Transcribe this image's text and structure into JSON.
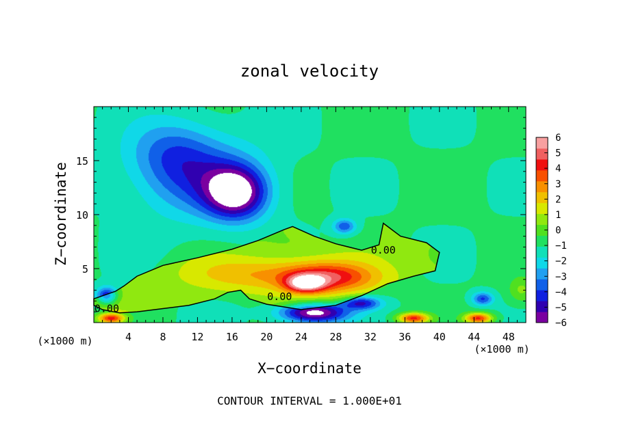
{
  "chart_data": {
    "type": "heatmap",
    "title": "zonal velocity",
    "xlabel": "X−coordinate",
    "ylabel": "Z−coordinate",
    "x_unit_left": "(×1000 m)",
    "x_unit_right": "(×1000 m)",
    "footer": "CONTOUR INTERVAL = 1.000E+01",
    "xlim": [
      0,
      50
    ],
    "ylim": [
      0,
      20
    ],
    "x_ticks": [
      4,
      8,
      12,
      16,
      20,
      24,
      28,
      32,
      36,
      40,
      44,
      48
    ],
    "x_tick_labels": [
      "4",
      "8",
      "12",
      "16",
      "20",
      "24",
      "28",
      "32",
      "36",
      "40",
      "44",
      "48"
    ],
    "y_ticks": [
      5,
      10,
      15
    ],
    "y_tick_labels": [
      "5",
      "10",
      "15"
    ],
    "colorbar": {
      "min": -6,
      "max": 6,
      "ticks": [
        6,
        5,
        4,
        3,
        2,
        1,
        0,
        -1,
        -2,
        -3,
        -4,
        -5,
        -6
      ],
      "tick_labels": [
        "6",
        "5",
        "4",
        "3",
        "2",
        "1",
        "0",
        "−1",
        "−2",
        "−3",
        "−4",
        "−5",
        "−6"
      ],
      "colors": [
        "#7a00a0",
        "#3000b0",
        "#1020e0",
        "#1060e8",
        "#20a0f0",
        "#10d8e8",
        "#10e0b8",
        "#20e060",
        "#50e020",
        "#90e810",
        "#d8e800",
        "#f0c000",
        "#f89000",
        "#f85000",
        "#f01010",
        "#f06060",
        "#f8a0a0"
      ]
    },
    "contour_labels": [
      {
        "text": "0.00",
        "x": 33.5,
        "y": 6.7
      },
      {
        "text": "0.00",
        "x": 21.5,
        "y": 2.4
      },
      {
        "text": "0.00",
        "x": 1.5,
        "y": 1.3
      }
    ],
    "zero_contour": [
      [
        0,
        2.2
      ],
      [
        2.5,
        2.9
      ],
      [
        3.5,
        3.4
      ],
      [
        5.0,
        4.3
      ],
      [
        8.0,
        5.3
      ],
      [
        12.0,
        6.0
      ],
      [
        16.0,
        6.8
      ],
      [
        19.0,
        7.6
      ],
      [
        22.0,
        8.6
      ],
      [
        23.0,
        8.9
      ],
      [
        25.5,
        8.0
      ],
      [
        28.0,
        7.3
      ],
      [
        31.0,
        6.7
      ],
      [
        33.0,
        7.2
      ],
      [
        33.5,
        9.2
      ],
      [
        35.5,
        8.0
      ],
      [
        38.5,
        7.4
      ],
      [
        40.0,
        6.5
      ],
      [
        39.5,
        4.8
      ],
      [
        37.0,
        4.3
      ],
      [
        34.0,
        3.6
      ],
      [
        31.0,
        2.5
      ],
      [
        28.0,
        1.6
      ],
      [
        24.0,
        1.2
      ],
      [
        20.0,
        1.7
      ],
      [
        18.0,
        2.2
      ],
      [
        17.0,
        3.0
      ],
      [
        15.5,
        2.8
      ],
      [
        14.0,
        2.2
      ],
      [
        11.0,
        1.6
      ],
      [
        8.0,
        1.3
      ],
      [
        5.0,
        1.0
      ],
      [
        3.0,
        0.9
      ],
      [
        1.0,
        1.2
      ],
      [
        0,
        1.6
      ]
    ],
    "features": [
      {
        "x": 16.5,
        "y": 12.0,
        "value": -5.2,
        "sx": 3.5,
        "sy": 2.4
      },
      {
        "x": 12.0,
        "y": 13.5,
        "value": -2.6,
        "sx": 7.0,
        "sy": 3.8
      },
      {
        "x": 9.0,
        "y": 16.0,
        "value": -1.6,
        "sx": 5.0,
        "sy": 3.0
      },
      {
        "x": 29.0,
        "y": 8.9,
        "value": -2.8,
        "sx": 1.3,
        "sy": 0.7
      },
      {
        "x": 27.0,
        "y": 4.2,
        "value": 4.0,
        "sx": 5.5,
        "sy": 1.4
      },
      {
        "x": 24.5,
        "y": 3.6,
        "value": 4.5,
        "sx": 2.2,
        "sy": 0.8
      },
      {
        "x": 18.0,
        "y": 4.5,
        "value": 1.6,
        "sx": 7.0,
        "sy": 1.5
      },
      {
        "x": 25.5,
        "y": 0.9,
        "value": -5.5,
        "sx": 3.8,
        "sy": 0.9
      },
      {
        "x": 31.0,
        "y": 1.8,
        "value": -3.5,
        "sx": 2.2,
        "sy": 0.6
      },
      {
        "x": 1.5,
        "y": 2.5,
        "value": -3.5,
        "sx": 1.2,
        "sy": 0.8
      },
      {
        "x": 2.0,
        "y": 0.4,
        "value": 5.0,
        "sx": 1.6,
        "sy": 0.5
      },
      {
        "x": 37.0,
        "y": 0.4,
        "value": 5.0,
        "sx": 1.8,
        "sy": 0.5
      },
      {
        "x": 44.5,
        "y": 0.4,
        "value": 5.0,
        "sx": 1.6,
        "sy": 0.5
      },
      {
        "x": 45.0,
        "y": 2.2,
        "value": -3.0,
        "sx": 1.2,
        "sy": 0.6
      },
      {
        "x": 49.5,
        "y": 3.0,
        "value": 1.5,
        "sx": 1.5,
        "sy": 1.2
      }
    ]
  }
}
